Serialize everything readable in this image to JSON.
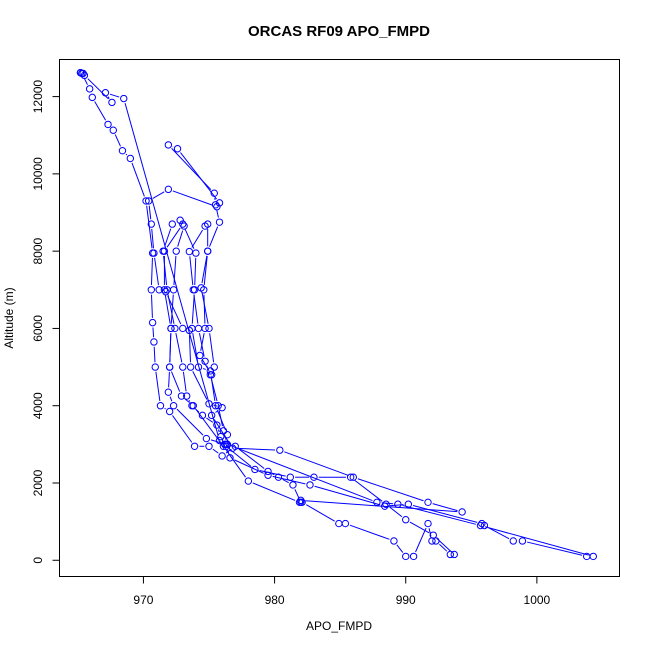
{
  "chart_data": {
    "type": "line",
    "title": "ORCAS RF09 APO_FMPD",
    "xlabel": "APO_FMPD",
    "ylabel": "Altitude (m)",
    "xlim": [
      963.6,
      1006.3
    ],
    "ylim": [
      -420,
      12960
    ],
    "x_ticks": [
      970,
      980,
      990,
      1000
    ],
    "y_ticks": [
      0,
      2000,
      4000,
      6000,
      8000,
      10000,
      12000
    ],
    "color": "#0000ff",
    "grid": false,
    "markers": "open-circle",
    "series": [
      {
        "points": [
          [
            965.2,
            12620
          ],
          [
            965.3,
            12600
          ],
          [
            965.9,
            12200
          ],
          [
            966.1,
            11980
          ],
          [
            967.3,
            11280
          ],
          [
            967.7,
            11130
          ],
          [
            968.4,
            10600
          ],
          [
            969.0,
            10400
          ],
          [
            970.2,
            9300
          ],
          [
            970.7,
            7950
          ],
          [
            970.6,
            7000
          ],
          [
            970.7,
            6150
          ],
          [
            970.8,
            5650
          ],
          [
            970.9,
            5000
          ],
          [
            971.3,
            4000
          ],
          [
            972.0,
            3850
          ],
          [
            973.9,
            2950
          ],
          [
            975.0,
            2950
          ],
          [
            976.0,
            2700
          ],
          [
            977.0,
            2950
          ],
          [
            979.5,
            2300
          ],
          [
            980.3,
            2150
          ],
          [
            981.4,
            1950
          ],
          [
            982.0,
            1500
          ],
          [
            982.1,
            1500
          ],
          [
            984.9,
            950
          ],
          [
            985.4,
            950
          ],
          [
            989.1,
            500
          ],
          [
            990.0,
            100
          ],
          [
            990.6,
            100
          ],
          [
            991.7,
            950
          ],
          [
            992.0,
            500
          ],
          [
            992.3,
            500
          ],
          [
            993.4,
            150
          ],
          [
            993.7,
            150
          ],
          [
            992.1,
            650
          ],
          [
            990.0,
            1050
          ],
          [
            988.5,
            1450
          ],
          [
            985.8,
            2150
          ],
          [
            983.0,
            2150
          ],
          [
            981.2,
            2150
          ],
          [
            978.5,
            2350
          ],
          [
            976.3,
            2950
          ],
          [
            976.2,
            3000
          ],
          [
            975.9,
            3200
          ],
          [
            975.6,
            3500
          ],
          [
            974.5,
            3750
          ],
          [
            973.7,
            4000
          ],
          [
            973.3,
            4250
          ],
          [
            973.0,
            5000
          ],
          [
            972.4,
            6000
          ],
          [
            971.8,
            7000
          ],
          [
            971.5,
            8000
          ],
          [
            972.2,
            8700
          ],
          [
            972.8,
            8800
          ],
          [
            973.1,
            8650
          ],
          [
            972.5,
            8000
          ],
          [
            972.3,
            7000
          ],
          [
            972.1,
            6000
          ],
          [
            972.0,
            5000
          ],
          [
            971.9,
            4350
          ],
          [
            972.3,
            4000
          ],
          [
            974.8,
            3150
          ],
          [
            976.3,
            3000
          ],
          [
            976.6,
            2650
          ],
          [
            979.5,
            2200
          ],
          [
            982.7,
            1950
          ],
          [
            988.4,
            1400
          ],
          [
            990.2,
            1450
          ],
          [
            995.8,
            950
          ],
          [
            996.0,
            900
          ],
          [
            998.2,
            500
          ],
          [
            998.9,
            500
          ],
          [
            1003.8,
            100
          ],
          [
            1004.3,
            100
          ],
          [
            995.7,
            900
          ],
          [
            989.4,
            1450
          ],
          [
            987.8,
            1500
          ],
          [
            976.4,
            3000
          ],
          [
            976.1,
            3350
          ],
          [
            975.7,
            4000
          ],
          [
            975.1,
            4800
          ],
          [
            974.7,
            5150
          ],
          [
            974.2,
            6000
          ],
          [
            973.8,
            7000
          ],
          [
            973.5,
            7990
          ],
          [
            974.7,
            8650
          ],
          [
            974.9,
            8700
          ],
          [
            974.9,
            8000
          ],
          [
            974.6,
            7000
          ],
          [
            974.7,
            6000
          ],
          [
            974.3,
            5300
          ],
          [
            975.2,
            4800
          ],
          [
            975.4,
            5000
          ],
          [
            975.0,
            6000
          ],
          [
            974.4,
            7050
          ],
          [
            974.9,
            8000
          ],
          [
            975.8,
            8750
          ],
          [
            975.5,
            9200
          ],
          [
            975.4,
            9500
          ],
          [
            971.9,
            10750
          ],
          [
            972.6,
            10650
          ],
          [
            975.8,
            9250
          ],
          [
            975.6,
            9150
          ],
          [
            971.9,
            9600
          ],
          [
            970.4,
            9300
          ],
          [
            970.6,
            8700
          ],
          [
            970.8,
            7950
          ],
          [
            971.2,
            7000
          ],
          [
            971.7,
            6950
          ],
          [
            973.0,
            6000
          ],
          [
            973.5,
            5950
          ],
          [
            973.6,
            5000
          ],
          [
            975.0,
            4050
          ],
          [
            976.0,
            3950
          ],
          [
            975.2,
            3750
          ],
          [
            976.8,
            2900
          ],
          [
            980.4,
            2850
          ],
          [
            986.0,
            2150
          ],
          [
            991.7,
            1500
          ],
          [
            994.3,
            1250
          ],
          [
            982.0,
            1550
          ],
          [
            981.9,
            1500
          ],
          [
            978.0,
            2050
          ],
          [
            976.1,
            2950
          ],
          [
            973.8,
            4000
          ],
          [
            972.9,
            4250
          ],
          [
            972.0,
            5000
          ],
          [
            972.1,
            6000
          ],
          [
            971.6,
            7000
          ],
          [
            971.6,
            8000
          ],
          [
            973.0,
            8700
          ],
          [
            974.0,
            7950
          ],
          [
            973.9,
            7000
          ],
          [
            973.7,
            6000
          ],
          [
            974.2,
            5000
          ],
          [
            975.1,
            4900
          ],
          [
            975.5,
            4000
          ],
          [
            976.4,
            3250
          ],
          [
            975.8,
            3100
          ],
          [
            968.5,
            11950
          ],
          [
            967.1,
            12100
          ],
          [
            967.6,
            11850
          ],
          [
            965.5,
            12550
          ],
          [
            965.4,
            12600
          ],
          [
            965.2,
            12620
          ]
        ]
      }
    ]
  }
}
